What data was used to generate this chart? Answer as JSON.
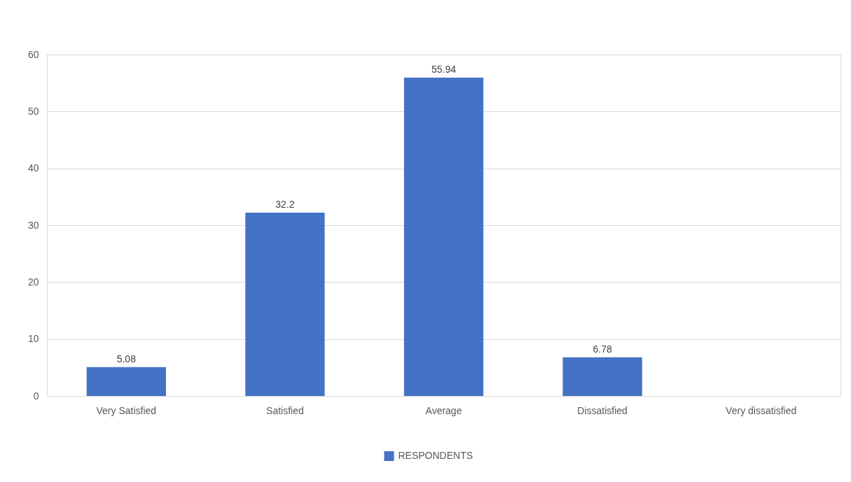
{
  "chart_data": {
    "type": "bar",
    "categories": [
      "Very Satisfied",
      "Satisfied",
      "Average",
      "Dissatisfied",
      "Very dissatisfied"
    ],
    "series": [
      {
        "name": "RESPONDENTS",
        "color": "#4472c4",
        "values": [
          5.08,
          32.2,
          55.94,
          6.78,
          null
        ]
      }
    ],
    "ylim": [
      0,
      60
    ],
    "yticks": [
      0,
      10,
      20,
      30,
      40,
      50,
      60
    ],
    "grid": "y",
    "legend": "bottom",
    "data_labels": true
  }
}
